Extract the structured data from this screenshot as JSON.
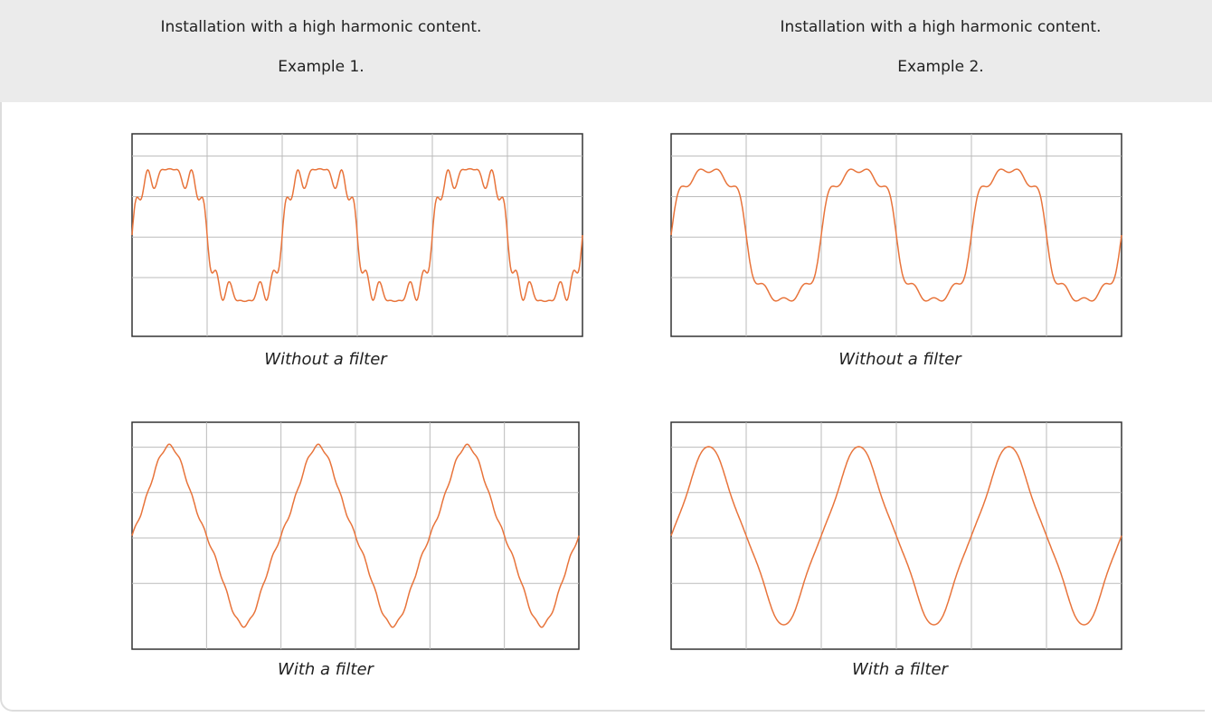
{
  "header": {
    "columns": [
      {
        "title": "Installation with a high harmonic content.",
        "subtitle": "Example 1."
      },
      {
        "title": "Installation with a high harmonic content.",
        "subtitle": "Example 2."
      }
    ]
  },
  "panels": [
    {
      "caption": "Without a filter"
    },
    {
      "caption": "Without a filter"
    },
    {
      "caption": "With a filter"
    },
    {
      "caption": "With a filter"
    }
  ]
}
